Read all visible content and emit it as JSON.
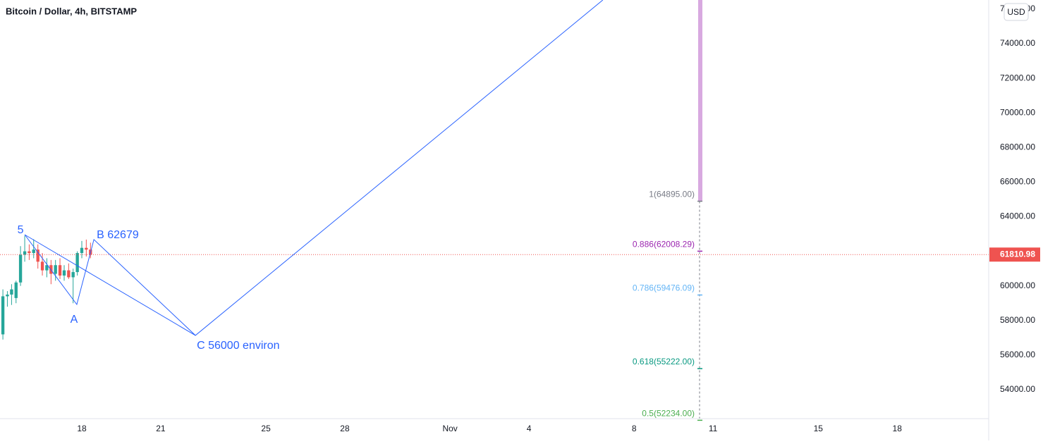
{
  "chart_data": {
    "type": "candlestick",
    "title": "Bitcoin / Dollar, 4h, BITSTAMP",
    "currency": "USD",
    "x": [
      15.0,
      15.17,
      15.33,
      15.5,
      15.67,
      15.83,
      16.0,
      16.17,
      16.33,
      16.5,
      16.67,
      16.83,
      17.0,
      17.17,
      17.33,
      17.5,
      17.67,
      17.83,
      18.0,
      18.17,
      18.33
    ],
    "open": [
      57200,
      59400,
      59500,
      59300,
      60200,
      61800,
      62000,
      61900,
      62100,
      61400,
      60900,
      61200,
      60700,
      61200,
      60600,
      60900,
      60500,
      60800,
      61900,
      62200,
      62100
    ],
    "high": [
      59800,
      59700,
      60100,
      60300,
      62300,
      62900,
      62400,
      62700,
      62400,
      61900,
      61600,
      61500,
      61500,
      61600,
      61200,
      61300,
      61000,
      62000,
      62600,
      62679,
      62500
    ],
    "low": [
      56900,
      58800,
      58900,
      59000,
      60000,
      61400,
      61500,
      61600,
      61000,
      60600,
      60500,
      60100,
      60300,
      60400,
      60300,
      60400,
      59000,
      60600,
      61600,
      61700,
      61600
    ],
    "close": [
      59400,
      59500,
      59800,
      60200,
      61800,
      62000,
      61900,
      62100,
      61400,
      60900,
      61200,
      60700,
      61200,
      60600,
      60900,
      60500,
      60800,
      61900,
      62200,
      62100,
      61811
    ],
    "up_color": "#26a69a",
    "down_color": "#ef5350",
    "last_price": 61810.98,
    "xlim": [
      14.89,
      52.48
    ],
    "xticks": [
      {
        "value": 18,
        "label": "18"
      },
      {
        "value": 21,
        "label": "21"
      },
      {
        "value": 25,
        "label": "25"
      },
      {
        "value": 28,
        "label": "28"
      },
      {
        "value": 32,
        "label": "Nov"
      },
      {
        "value": 35,
        "label": "4"
      },
      {
        "value": 39,
        "label": "8"
      },
      {
        "value": 42,
        "label": "11"
      },
      {
        "value": 46,
        "label": "15"
      },
      {
        "value": 49,
        "label": "18"
      }
    ],
    "ylim": [
      52330,
      76525
    ],
    "yticks": [
      {
        "value": 54000,
        "label": "54000.00"
      },
      {
        "value": 56000,
        "label": "56000.00"
      },
      {
        "value": 58000,
        "label": "58000.00"
      },
      {
        "value": 60000,
        "label": "60000.00"
      },
      {
        "value": 62000,
        "label": "62000.00"
      },
      {
        "value": 64000,
        "label": "64000.00"
      },
      {
        "value": 66000,
        "label": "66000.00"
      },
      {
        "value": 68000,
        "label": "68000.00"
      },
      {
        "value": 70000,
        "label": "70000.00"
      },
      {
        "value": 72000,
        "label": "72000.00"
      },
      {
        "value": 74000,
        "label": "74000.00"
      },
      {
        "value": 76000,
        "label": "76000.00"
      }
    ],
    "grid": true,
    "wave": {
      "color": "#2962ff",
      "x": [
        15.83,
        17.81,
        18.46,
        22.32,
        37.81
      ],
      "y": [
        62961,
        58929,
        62679,
        57140,
        76525
      ],
      "labels": [
        "5",
        "A",
        "B 62679",
        "C 56000 environ",
        null
      ]
    },
    "fib": [
      {
        "label": "1(64895.00)",
        "price": 64895,
        "color": "#787b86"
      },
      {
        "label": "0.886(62008.29)",
        "price": 62008.29,
        "color": "#9c27b0"
      },
      {
        "label": "0.786(59476.09)",
        "price": 59476.09,
        "color": "#64b5f6"
      },
      {
        "label": "0.618(55222.00)",
        "price": 55222,
        "color": "#089981"
      },
      {
        "label": "0.5(52234.00)",
        "price": 52234,
        "color": "#4caf50"
      }
    ]
  }
}
